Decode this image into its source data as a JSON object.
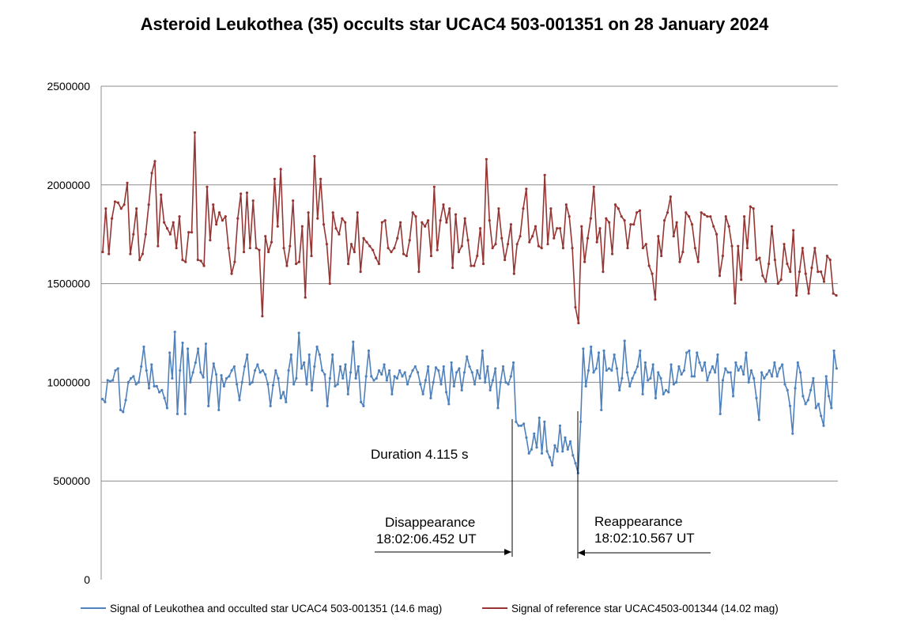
{
  "chart_data": {
    "type": "line",
    "title": "Asteroid Leukothea (35) occults star UCAC4 503-001351 on 28 January 2024",
    "xlabel": "",
    "ylabel": "",
    "ylim": [
      0,
      2500000
    ],
    "yticks": [
      0,
      500000,
      1000000,
      1500000,
      2000000,
      2500000
    ],
    "ytick_labels": [
      "0",
      "500000",
      "1000000",
      "1500000",
      "2000000",
      "2500000"
    ],
    "grid": true,
    "legend_position": "bottom",
    "series": [
      {
        "name": "Signal of Leukothea and occulted star UCAC4 503-001351 (14.6 mag)",
        "color": "#4f81bd",
        "values": [
          915000,
          900000,
          1010000,
          1005000,
          1010000,
          1060000,
          1070000,
          860000,
          850000,
          910000,
          1000000,
          1020000,
          1030000,
          990000,
          1000000,
          1080000,
          1180000,
          1060000,
          970000,
          1090000,
          980000,
          980000,
          950000,
          960000,
          920000,
          870000,
          1150000,
          1020000,
          1255000,
          840000,
          1060000,
          1200000,
          840000,
          1170000,
          1000000,
          1050000,
          1100000,
          1170000,
          1050000,
          1025000,
          1195000,
          880000,
          1000000,
          1095000,
          1040000,
          860000,
          1035000,
          980000,
          1020000,
          1030000,
          1060000,
          1080000,
          990000,
          910000,
          1000000,
          1080000,
          1140000,
          990000,
          1000000,
          1060000,
          1090000,
          1050000,
          1060000,
          1040000,
          990000,
          880000,
          985000,
          1060000,
          1020000,
          920000,
          950000,
          900000,
          1060000,
          1140000,
          990000,
          1020000,
          1250000,
          1070000,
          1100000,
          990000,
          1140000,
          960000,
          1080000,
          1180000,
          1140000,
          1060000,
          1040000,
          880000,
          1020000,
          1140000,
          980000,
          990000,
          1080000,
          1020000,
          1090000,
          940000,
          1050000,
          1205000,
          1020000,
          1080000,
          900000,
          880000,
          1030000,
          1160000,
          1030000,
          1010000,
          1020000,
          1060000,
          1040000,
          1090000,
          1010000,
          1060000,
          940000,
          1030000,
          1020000,
          1060000,
          1030000,
          1050000,
          990000,
          1030000,
          1060000,
          1080000,
          1050000,
          990000,
          940000,
          1010000,
          1080000,
          920000,
          1000000,
          1075000,
          1060000,
          990000,
          1080000,
          950000,
          890000,
          1100000,
          980000,
          1050000,
          1070000,
          960000,
          1050000,
          1130000,
          1080000,
          1050000,
          990000,
          1060000,
          1020000,
          1160000,
          1000000,
          1080000,
          960000,
          1010000,
          1070000,
          870000,
          1000000,
          1080000,
          1000000,
          990000,
          1030000,
          1100000,
          800000,
          780000,
          780000,
          790000,
          720000,
          640000,
          660000,
          740000,
          670000,
          820000,
          640000,
          800000,
          650000,
          620000,
          580000,
          680000,
          650000,
          780000,
          650000,
          720000,
          660000,
          700000,
          630000,
          590000,
          540000,
          800000,
          1170000,
          980000,
          1060000,
          1180000,
          1050000,
          1070000,
          1150000,
          860000,
          1160000,
          1060000,
          1070000,
          1060000,
          1140000,
          1070000,
          960000,
          1020000,
          1210000,
          1050000,
          980000,
          1020000,
          1050000,
          1080000,
          1160000,
          940000,
          1100000,
          1010000,
          1020000,
          1090000,
          920000,
          1050000,
          1020000,
          940000,
          960000,
          950000,
          1090000,
          990000,
          1000000,
          1080000,
          1040000,
          1060000,
          1150000,
          1160000,
          1030000,
          1030000,
          1150000,
          1100000,
          1060000,
          1100000,
          1010000,
          1050000,
          1080000,
          1050000,
          1140000,
          840000,
          1010000,
          1070000,
          1050000,
          1050000,
          930000,
          1100000,
          1060000,
          1080000,
          1040000,
          1150000,
          1000000,
          1060000,
          1020000,
          920000,
          810000,
          1050000,
          1020000,
          1040000,
          1060000,
          1030000,
          1100000,
          1030000,
          1070000,
          1090000,
          990000,
          960000,
          880000,
          740000,
          970000,
          1100000,
          1050000,
          930000,
          890000,
          910000,
          960000,
          1020000,
          870000,
          890000,
          830000,
          780000,
          1030000,
          930000,
          870000,
          1160000,
          1070000
        ]
      },
      {
        "name": "Signal of reference star UCAC4503-001344 (14.02 mag)",
        "color": "#963634",
        "values": [
          1660000,
          1880000,
          1650000,
          1830000,
          1915000,
          1910000,
          1880000,
          1900000,
          2010000,
          1650000,
          1750000,
          1880000,
          1620000,
          1650000,
          1750000,
          1900000,
          2060000,
          2120000,
          1690000,
          1950000,
          1810000,
          1780000,
          1750000,
          1810000,
          1680000,
          1840000,
          1620000,
          1610000,
          1760000,
          1760000,
          2265000,
          1620000,
          1615000,
          1590000,
          1990000,
          1720000,
          1900000,
          1800000,
          1860000,
          1820000,
          1840000,
          1680000,
          1550000,
          1610000,
          1830000,
          1955000,
          1660000,
          1960000,
          1680000,
          1920000,
          1680000,
          1670000,
          1335000,
          1740000,
          1660000,
          1710000,
          2030000,
          1790000,
          2080000,
          1680000,
          1590000,
          1690000,
          1920000,
          1600000,
          1610000,
          1790000,
          1430000,
          1860000,
          1640000,
          2145000,
          1830000,
          2030000,
          1800000,
          1700000,
          1500000,
          1860000,
          1780000,
          1750000,
          1830000,
          1810000,
          1600000,
          1700000,
          1660000,
          1860000,
          1560000,
          1730000,
          1710000,
          1690000,
          1670000,
          1630000,
          1600000,
          1810000,
          1820000,
          1680000,
          1660000,
          1680000,
          1730000,
          1810000,
          1650000,
          1640000,
          1720000,
          1860000,
          1840000,
          1560000,
          1810000,
          1790000,
          1820000,
          1640000,
          1990000,
          1670000,
          1820000,
          1900000,
          1810000,
          1880000,
          1580000,
          1850000,
          1660000,
          1690000,
          1830000,
          1720000,
          1590000,
          1590000,
          1640000,
          1780000,
          1600000,
          2130000,
          1820000,
          1680000,
          1700000,
          1880000,
          1730000,
          1620000,
          1700000,
          1800000,
          1550000,
          1700000,
          1740000,
          1880000,
          1980000,
          1710000,
          1740000,
          1790000,
          1690000,
          1680000,
          2050000,
          1700000,
          1880000,
          1730000,
          1780000,
          1780000,
          1680000,
          1900000,
          1840000,
          1680000,
          1380000,
          1300000,
          1790000,
          1610000,
          1730000,
          1830000,
          1990000,
          1710000,
          1780000,
          1560000,
          1830000,
          1810000,
          1650000,
          1900000,
          1880000,
          1840000,
          1820000,
          1680000,
          1800000,
          1800000,
          1860000,
          1870000,
          1680000,
          1700000,
          1590000,
          1550000,
          1420000,
          1740000,
          1640000,
          1820000,
          1860000,
          1940000,
          1740000,
          1810000,
          1610000,
          1660000,
          1860000,
          1840000,
          1800000,
          1680000,
          1610000,
          1860000,
          1850000,
          1840000,
          1840000,
          1790000,
          1750000,
          1540000,
          1640000,
          1840000,
          1790000,
          1690000,
          1400000,
          1690000,
          1520000,
          1840000,
          1680000,
          1890000,
          1880000,
          1620000,
          1630000,
          1540000,
          1510000,
          1600000,
          1790000,
          1620000,
          1500000,
          1520000,
          1700000,
          1600000,
          1560000,
          1770000,
          1440000,
          1560000,
          1680000,
          1550000,
          1450000,
          1580000,
          1680000,
          1560000,
          1560000,
          1510000,
          1640000,
          1620000,
          1450000,
          1440000
        ]
      }
    ],
    "annotations": [
      {
        "id": "duration",
        "text": "Duration 4.115 s"
      },
      {
        "id": "disappearance",
        "text": "Disappearance",
        "time": "18:02:06.452 UT"
      },
      {
        "id": "reappearance",
        "text": "Reappearance",
        "time": "18:02:10.567 UT"
      }
    ]
  }
}
